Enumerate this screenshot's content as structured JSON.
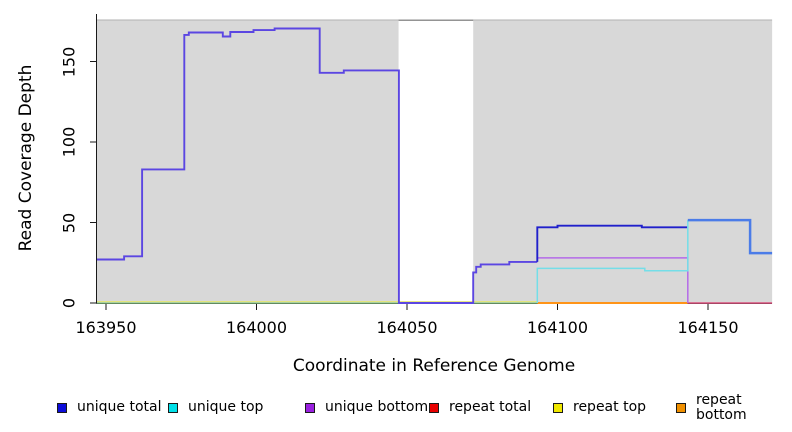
{
  "chart_data": {
    "type": "line",
    "subtype": "step-coverage",
    "title": "",
    "xlabel": "Coordinate in Reference Genome",
    "ylabel": "Read Coverage Depth",
    "xlim": [
      163947,
      164171.3
    ],
    "ylim": [
      0,
      176
    ],
    "x_ticks": [
      163950,
      164000,
      164050,
      164100,
      164150
    ],
    "y_ticks": [
      0,
      50,
      100,
      150
    ],
    "grid": false,
    "legend_position": "bottom",
    "repeat_region_fill": "#d8d8d8",
    "repeat_regions": [
      [
        163947,
        164047.2
      ],
      [
        164072,
        164171.3
      ]
    ],
    "series": [
      {
        "name": "unique total",
        "color": "#0d0dd9",
        "steps": [
          [
            163947,
            27
          ],
          [
            163956,
            29
          ],
          [
            163962,
            83
          ],
          [
            163976,
            166.5
          ],
          [
            163977.5,
            168
          ],
          [
            163988.8,
            165.5
          ],
          [
            163991.3,
            168.3
          ],
          [
            163999,
            169.5
          ],
          [
            164006,
            170.5
          ],
          [
            164021,
            143
          ],
          [
            164029,
            144.5
          ],
          [
            164047.3,
            0
          ],
          [
            164072,
            19
          ],
          [
            164073,
            22.5
          ],
          [
            164074.5,
            24
          ],
          [
            164084,
            25.5
          ],
          [
            164093.3,
            47
          ],
          [
            164100,
            48
          ],
          [
            164128,
            47
          ],
          [
            164143.3,
            51.5
          ],
          [
            164164,
            31
          ],
          [
            164171.3,
            31
          ]
        ]
      },
      {
        "name": "unique top",
        "color": "#00e0e8",
        "steps": [
          [
            163947,
            0
          ],
          [
            164093.3,
            21.5
          ],
          [
            164129,
            20
          ],
          [
            164143.3,
            51.5
          ],
          [
            164164,
            31
          ],
          [
            164171.3,
            31
          ]
        ]
      },
      {
        "name": "unique bottom",
        "color": "#9a20e0",
        "steps": [
          [
            163947,
            27
          ],
          [
            163956,
            29
          ],
          [
            163962,
            83
          ],
          [
            163976,
            166.5
          ],
          [
            163977.5,
            168
          ],
          [
            163988.8,
            165.5
          ],
          [
            163991.3,
            168.3
          ],
          [
            163999,
            169.5
          ],
          [
            164006,
            170.5
          ],
          [
            164021,
            143
          ],
          [
            164029,
            144.5
          ],
          [
            164047.3,
            0
          ],
          [
            164072,
            19
          ],
          [
            164073,
            22.5
          ],
          [
            164074.5,
            24
          ],
          [
            164084,
            25.5
          ],
          [
            164093.3,
            28
          ],
          [
            164143.3,
            0
          ],
          [
            164171.3,
            0
          ]
        ]
      },
      {
        "name": "repeat total",
        "color": "#e80000",
        "steps": [
          [
            163947,
            0
          ],
          [
            164171.3,
            0
          ]
        ]
      },
      {
        "name": "repeat top",
        "color": "#f0e800",
        "steps": [
          [
            163947,
            0
          ],
          [
            164171.3,
            0
          ]
        ]
      },
      {
        "name": "repeat bottom",
        "color": "#f09000",
        "steps": [
          [
            163947,
            0
          ],
          [
            164171.3,
            0
          ]
        ]
      }
    ],
    "decor_lines": [
      {
        "name": "repeat-region-top-edge",
        "v": 175.8,
        "c1": 163947,
        "c2": 164171.3,
        "color": "#b2b2b2",
        "w": 1
      },
      {
        "name": "gap-top-edge",
        "v": 175.6,
        "c1": 164047.2,
        "c2": 164072,
        "color": "#858585",
        "w": 1.3
      }
    ],
    "render_lines": [
      {
        "name": "baseline-repeat-top-yellow",
        "color": "#e6e670",
        "w": 1,
        "pts": [
          [
            163947,
            0.9
          ],
          [
            164093.3,
            0.9
          ]
        ]
      },
      {
        "name": "baseline-unique-top-green-blend",
        "color": "#8ccd8a",
        "w": 1.3,
        "pts": [
          [
            163947,
            0
          ],
          [
            164093.3,
            0
          ]
        ]
      },
      {
        "name": "unique-total-bottom-blend",
        "color": "#5b46e2",
        "w": 1.9,
        "pts": [
          [
            163947,
            27
          ],
          [
            163956,
            29
          ],
          [
            163962,
            83
          ],
          [
            163976,
            166.5
          ],
          [
            163977.5,
            168
          ],
          [
            163988.8,
            165.5
          ],
          [
            163991.3,
            168.3
          ],
          [
            163999,
            169.5
          ],
          [
            164006,
            170.5
          ],
          [
            164021,
            143
          ],
          [
            164029,
            144.5
          ],
          [
            164047.3,
            0
          ],
          [
            164072,
            19
          ],
          [
            164073,
            22.5
          ],
          [
            164074.5,
            24
          ],
          [
            164084,
            25.5
          ],
          [
            164093.3,
            25.5
          ]
        ]
      },
      {
        "name": "baseline-repeat-bottom-orange",
        "color": "#ff9418",
        "w": 2,
        "pts": [
          [
            164093.3,
            0
          ],
          [
            164143.3,
            0
          ]
        ]
      },
      {
        "name": "baseline-repeat-total-pink-blend",
        "color": "#d9537e",
        "w": 1.6,
        "pts": [
          [
            164143.3,
            0
          ],
          [
            164171.3,
            0
          ]
        ]
      },
      {
        "name": "unique-bottom-purple",
        "color": "#b46ae8",
        "w": 1.5,
        "pts": [
          [
            164093.3,
            28
          ],
          [
            164143.3,
            28
          ],
          [
            164143.3,
            0
          ]
        ]
      },
      {
        "name": "unique-total-dark-blue",
        "color": "#2020cb",
        "w": 1.9,
        "pts": [
          [
            164093.3,
            25.5
          ],
          [
            164093.3,
            47
          ],
          [
            164100,
            48
          ],
          [
            164128,
            47
          ],
          [
            164143.3,
            47
          ]
        ]
      },
      {
        "name": "unique-top-cyan",
        "color": "#74dee8",
        "w": 1.5,
        "pts": [
          [
            164093.3,
            0
          ],
          [
            164093.3,
            21.5
          ],
          [
            164129,
            20
          ],
          [
            164143.3,
            20
          ],
          [
            164143.3,
            51.5
          ]
        ]
      },
      {
        "name": "unique-total-top-blend",
        "color": "#4b7ce8",
        "w": 2.5,
        "pts": [
          [
            164143.3,
            51.5
          ],
          [
            164164,
            31
          ],
          [
            164171.3,
            31
          ]
        ]
      }
    ],
    "legend": [
      {
        "label": "unique total",
        "color": "#0d0dd9"
      },
      {
        "label": "unique top",
        "color": "#00e0e8"
      },
      {
        "label": "unique bottom",
        "color": "#9a20e0"
      },
      {
        "label": "repeat total",
        "color": "#e80000"
      },
      {
        "label": "repeat top",
        "color": "#f0e800"
      },
      {
        "label": "repeat bottom",
        "color": "#f09000"
      }
    ]
  },
  "axes": {
    "ylabel": "Read Coverage Depth",
    "xlabel": "Coordinate in Reference Genome",
    "x_tick_labels": [
      "163950",
      "164000",
      "164050",
      "164100",
      "164150"
    ],
    "y_tick_labels": [
      "0",
      "50",
      "100",
      "150"
    ],
    "axis_color": "#1a1a1a"
  }
}
